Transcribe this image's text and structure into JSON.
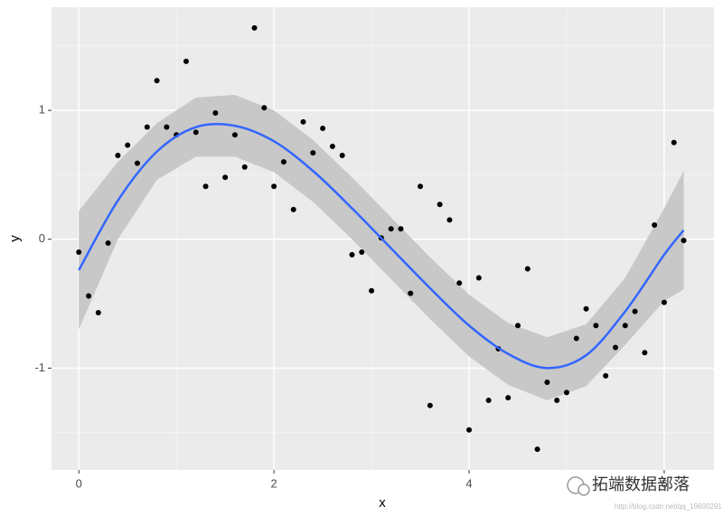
{
  "chart_data": {
    "type": "scatter",
    "x_label": "x",
    "y_label": "y",
    "x": [
      0,
      0.1,
      0.2,
      0.3,
      0.4,
      0.5,
      0.6,
      0.7,
      0.8,
      0.9,
      1.0,
      1.1,
      1.2,
      1.3,
      1.4,
      1.5,
      1.6,
      1.7,
      1.8,
      1.9,
      2.0,
      2.1,
      2.2,
      2.3,
      2.4,
      2.5,
      2.6,
      2.7,
      2.8,
      2.9,
      3.0,
      3.1,
      3.2,
      3.3,
      3.4,
      3.5,
      3.6,
      3.7,
      3.8,
      3.9,
      4.0,
      4.1,
      4.2,
      4.3,
      4.4,
      4.5,
      4.6,
      4.7,
      4.8,
      4.9,
      5.0,
      5.1,
      5.2,
      5.3,
      5.4,
      5.5,
      5.6,
      5.7,
      5.8,
      5.9,
      6.0,
      6.1,
      6.2
    ],
    "values": [
      -0.1,
      -0.44,
      -0.57,
      -0.03,
      0.65,
      0.73,
      0.59,
      0.87,
      1.23,
      0.87,
      0.81,
      1.38,
      0.83,
      0.41,
      0.98,
      0.48,
      0.81,
      0.56,
      1.64,
      1.02,
      0.41,
      0.6,
      0.23,
      0.91,
      0.67,
      0.86,
      0.72,
      0.65,
      -0.12,
      -0.1,
      -0.4,
      0.01,
      0.08,
      0.08,
      -0.42,
      0.41,
      -1.29,
      0.27,
      0.15,
      -0.34,
      -1.48,
      -0.3,
      -1.25,
      -0.85,
      -1.23,
      -0.67,
      -0.23,
      -1.63,
      -1.11,
      -1.25,
      -1.19,
      -0.77,
      -0.54,
      -0.67,
      -1.06,
      -0.84,
      -0.67,
      -0.56,
      -0.88,
      0.11,
      -0.49,
      0.75,
      -0.01
    ],
    "color": "#000000",
    "smooth": {
      "x": [
        0,
        0.4,
        0.8,
        1.2,
        1.6,
        2.0,
        2.4,
        2.8,
        3.2,
        3.6,
        4.0,
        4.4,
        4.8,
        5.2,
        5.6,
        6.0,
        6.2
      ],
      "fit": [
        -0.24,
        0.3,
        0.68,
        0.87,
        0.88,
        0.76,
        0.53,
        0.24,
        -0.07,
        -0.38,
        -0.67,
        -0.89,
        -1.0,
        -0.9,
        -0.56,
        -0.12,
        0.07
      ],
      "lower": [
        -0.7,
        0.0,
        0.46,
        0.64,
        0.64,
        0.52,
        0.29,
        0.0,
        -0.31,
        -0.62,
        -0.91,
        -1.13,
        -1.25,
        -1.14,
        -0.82,
        -0.48,
        -0.39
      ],
      "upper": [
        0.22,
        0.6,
        0.9,
        1.1,
        1.12,
        1.0,
        0.77,
        0.48,
        0.17,
        -0.14,
        -0.43,
        -0.65,
        -0.76,
        -0.66,
        -0.3,
        0.24,
        0.53
      ],
      "color": "#3366FF",
      "band_color": "#c8c8c8"
    },
    "xlim": [
      -0.28,
      6.51
    ],
    "ylim": [
      -1.79,
      1.8
    ],
    "xticks": [
      0,
      2,
      4,
      6
    ],
    "yticks": [
      -1,
      0,
      1
    ],
    "grid": true,
    "watermark": "拓端数据部落",
    "watermark_url": "http://blog.csdn.net/qq_19600291"
  }
}
